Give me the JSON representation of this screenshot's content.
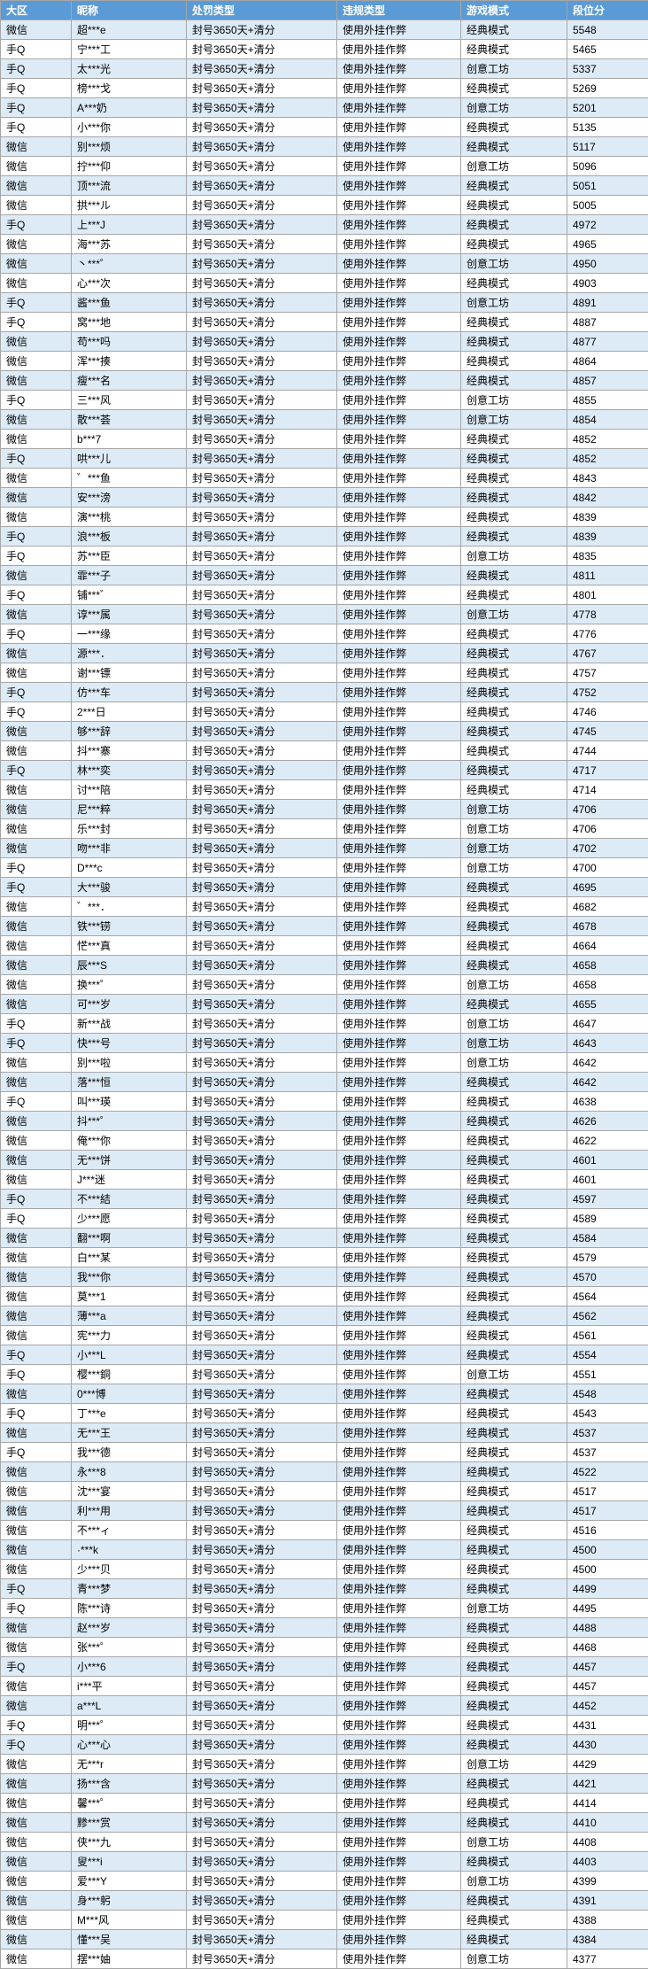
{
  "header": {
    "col0": "大区",
    "col1": "昵称",
    "col2": "处罚类型",
    "col3": "违规类型",
    "col4": "游戏模式",
    "col5": "段位分"
  },
  "colors": {
    "header_bg": "#5b9bd5",
    "header_fg": "#ffffff",
    "band_a": "#ddebf7",
    "band_b": "#ffffff",
    "border": "#a6a6a6"
  },
  "rows": [
    {
      "region": "微信",
      "nick": "超***e",
      "penalty": "封号3650天+清分",
      "violation": "使用外挂作弊",
      "mode": "经典模式",
      "score": "5548"
    },
    {
      "region": "手Q",
      "nick": "宁***工",
      "penalty": "封号3650天+清分",
      "violation": "使用外挂作弊",
      "mode": "经典模式",
      "score": "5465"
    },
    {
      "region": "手Q",
      "nick": "太***光",
      "penalty": "封号3650天+清分",
      "violation": "使用外挂作弊",
      "mode": "创意工坊",
      "score": "5337"
    },
    {
      "region": "手Q",
      "nick": "榜***戈",
      "penalty": "封号3650天+清分",
      "violation": "使用外挂作弊",
      "mode": "经典模式",
      "score": "5269"
    },
    {
      "region": "手Q",
      "nick": "A***奶",
      "penalty": "封号3650天+清分",
      "violation": "使用外挂作弊",
      "mode": "创意工坊",
      "score": "5201"
    },
    {
      "region": "手Q",
      "nick": "小***你",
      "penalty": "封号3650天+清分",
      "violation": "使用外挂作弊",
      "mode": "经典模式",
      "score": "5135"
    },
    {
      "region": "微信",
      "nick": "别***烦",
      "penalty": "封号3650天+清分",
      "violation": "使用外挂作弊",
      "mode": "经典模式",
      "score": "5117"
    },
    {
      "region": "微信",
      "nick": "拧***仰",
      "penalty": "封号3650天+清分",
      "violation": "使用外挂作弊",
      "mode": "创意工坊",
      "score": "5096"
    },
    {
      "region": "微信",
      "nick": "顶***流",
      "penalty": "封号3650天+清分",
      "violation": "使用外挂作弊",
      "mode": "经典模式",
      "score": "5051"
    },
    {
      "region": "微信",
      "nick": "拱***ル",
      "penalty": "封号3650天+清分",
      "violation": "使用外挂作弊",
      "mode": "经典模式",
      "score": "5005"
    },
    {
      "region": "手Q",
      "nick": "上***J",
      "penalty": "封号3650天+清分",
      "violation": "使用外挂作弊",
      "mode": "经典模式",
      "score": "4972"
    },
    {
      "region": "微信",
      "nick": "海***苏",
      "penalty": "封号3650天+清分",
      "violation": "使用外挂作弊",
      "mode": "经典模式",
      "score": "4965"
    },
    {
      "region": "微信",
      "nick": "丶***゜",
      "penalty": "封号3650天+清分",
      "violation": "使用外挂作弊",
      "mode": "创意工坊",
      "score": "4950"
    },
    {
      "region": "微信",
      "nick": "心***次",
      "penalty": "封号3650天+清分",
      "violation": "使用外挂作弊",
      "mode": "经典模式",
      "score": "4903"
    },
    {
      "region": "手Q",
      "nick": "酱***鱼",
      "penalty": "封号3650天+清分",
      "violation": "使用外挂作弊",
      "mode": "创意工坊",
      "score": "4891"
    },
    {
      "region": "手Q",
      "nick": "窝***地",
      "penalty": "封号3650天+清分",
      "violation": "使用外挂作弊",
      "mode": "经典模式",
      "score": "4887"
    },
    {
      "region": "微信",
      "nick": "苟***吗",
      "penalty": "封号3650天+清分",
      "violation": "使用外挂作弊",
      "mode": "经典模式",
      "score": "4877"
    },
    {
      "region": "微信",
      "nick": "浑***揍",
      "penalty": "封号3650天+清分",
      "violation": "使用外挂作弊",
      "mode": "经典模式",
      "score": "4864"
    },
    {
      "region": "微信",
      "nick": "瘦***名",
      "penalty": "封号3650天+清分",
      "violation": "使用外挂作弊",
      "mode": "经典模式",
      "score": "4857"
    },
    {
      "region": "手Q",
      "nick": "三***风",
      "penalty": "封号3650天+清分",
      "violation": "使用外挂作弊",
      "mode": "创意工坊",
      "score": "4855"
    },
    {
      "region": "微信",
      "nick": "散***荟",
      "penalty": "封号3650天+清分",
      "violation": "使用外挂作弊",
      "mode": "创意工坊",
      "score": "4854"
    },
    {
      "region": "微信",
      "nick": "b***7",
      "penalty": "封号3650天+清分",
      "violation": "使用外挂作弊",
      "mode": "经典模式",
      "score": "4852"
    },
    {
      "region": "手Q",
      "nick": "哄***儿",
      "penalty": "封号3650天+清分",
      "violation": "使用外挂作弊",
      "mode": "经典模式",
      "score": "4852"
    },
    {
      "region": "微信",
      "nick": "゛***鱼",
      "penalty": "封号3650天+清分",
      "violation": "使用外挂作弊",
      "mode": "经典模式",
      "score": "4843"
    },
    {
      "region": "微信",
      "nick": "安***滂",
      "penalty": "封号3650天+清分",
      "violation": "使用外挂作弊",
      "mode": "经典模式",
      "score": "4842"
    },
    {
      "region": "微信",
      "nick": "演***桃",
      "penalty": "封号3650天+清分",
      "violation": "使用外挂作弊",
      "mode": "经典模式",
      "score": "4839"
    },
    {
      "region": "手Q",
      "nick": "浪***板",
      "penalty": "封号3650天+清分",
      "violation": "使用外挂作弊",
      "mode": "经典模式",
      "score": "4839"
    },
    {
      "region": "手Q",
      "nick": "苏***臣",
      "penalty": "封号3650天+清分",
      "violation": "使用外挂作弊",
      "mode": "创意工坊",
      "score": "4835"
    },
    {
      "region": "微信",
      "nick": "霏***子",
      "penalty": "封号3650天+清分",
      "violation": "使用外挂作弊",
      "mode": "经典模式",
      "score": "4811"
    },
    {
      "region": "手Q",
      "nick": "铺***゛",
      "penalty": "封号3650天+清分",
      "violation": "使用外挂作弊",
      "mode": "经典模式",
      "score": "4801"
    },
    {
      "region": "微信",
      "nick": "谆***属",
      "penalty": "封号3650天+清分",
      "violation": "使用外挂作弊",
      "mode": "创意工坊",
      "score": "4778"
    },
    {
      "region": "手Q",
      "nick": "一***缘",
      "penalty": "封号3650天+清分",
      "violation": "使用外挂作弊",
      "mode": "经典模式",
      "score": "4776"
    },
    {
      "region": "微信",
      "nick": "源***．",
      "penalty": "封号3650天+清分",
      "violation": "使用外挂作弊",
      "mode": "经典模式",
      "score": "4767"
    },
    {
      "region": "微信",
      "nick": "谢***镖",
      "penalty": "封号3650天+清分",
      "violation": "使用外挂作弊",
      "mode": "经典模式",
      "score": "4757"
    },
    {
      "region": "手Q",
      "nick": "仿***车",
      "penalty": "封号3650天+清分",
      "violation": "使用外挂作弊",
      "mode": "经典模式",
      "score": "4752"
    },
    {
      "region": "手Q",
      "nick": "2***日",
      "penalty": "封号3650天+清分",
      "violation": "使用外挂作弊",
      "mode": "经典模式",
      "score": "4746"
    },
    {
      "region": "微信",
      "nick": "够***辞",
      "penalty": "封号3650天+清分",
      "violation": "使用外挂作弊",
      "mode": "经典模式",
      "score": "4745"
    },
    {
      "region": "微信",
      "nick": "抖***寨",
      "penalty": "封号3650天+清分",
      "violation": "使用外挂作弊",
      "mode": "经典模式",
      "score": "4744"
    },
    {
      "region": "手Q",
      "nick": "林***奕",
      "penalty": "封号3650天+清分",
      "violation": "使用外挂作弊",
      "mode": "经典模式",
      "score": "4717"
    },
    {
      "region": "微信",
      "nick": "讨***陪",
      "penalty": "封号3650天+清分",
      "violation": "使用外挂作弊",
      "mode": "经典模式",
      "score": "4714"
    },
    {
      "region": "微信",
      "nick": "尼***粹",
      "penalty": "封号3650天+清分",
      "violation": "使用外挂作弊",
      "mode": "创意工坊",
      "score": "4706"
    },
    {
      "region": "微信",
      "nick": "乐***封",
      "penalty": "封号3650天+清分",
      "violation": "使用外挂作弊",
      "mode": "创意工坊",
      "score": "4706"
    },
    {
      "region": "微信",
      "nick": "吻***非",
      "penalty": "封号3650天+清分",
      "violation": "使用外挂作弊",
      "mode": "创意工坊",
      "score": "4702"
    },
    {
      "region": "手Q",
      "nick": "D***c",
      "penalty": "封号3650天+清分",
      "violation": "使用外挂作弊",
      "mode": "创意工坊",
      "score": "4700"
    },
    {
      "region": "手Q",
      "nick": "大***骏",
      "penalty": "封号3650天+清分",
      "violation": "使用外挂作弊",
      "mode": "经典模式",
      "score": "4695"
    },
    {
      "region": "微信",
      "nick": "゛***．",
      "penalty": "封号3650天+清分",
      "violation": "使用外挂作弊",
      "mode": "经典模式",
      "score": "4682"
    },
    {
      "region": "微信",
      "nick": "铁***铹",
      "penalty": "封号3650天+清分",
      "violation": "使用外挂作弊",
      "mode": "经典模式",
      "score": "4678"
    },
    {
      "region": "微信",
      "nick": "恾***真",
      "penalty": "封号3650天+清分",
      "violation": "使用外挂作弊",
      "mode": "经典模式",
      "score": "4664"
    },
    {
      "region": "微信",
      "nick": "辰***S",
      "penalty": "封号3650天+清分",
      "violation": "使用外挂作弊",
      "mode": "经典模式",
      "score": "4658"
    },
    {
      "region": "微信",
      "nick": "换***゜",
      "penalty": "封号3650天+清分",
      "violation": "使用外挂作弊",
      "mode": "创意工坊",
      "score": "4658"
    },
    {
      "region": "微信",
      "nick": "可***岁",
      "penalty": "封号3650天+清分",
      "violation": "使用外挂作弊",
      "mode": "经典模式",
      "score": "4655"
    },
    {
      "region": "手Q",
      "nick": "新***战",
      "penalty": "封号3650天+清分",
      "violation": "使用外挂作弊",
      "mode": "创意工坊",
      "score": "4647"
    },
    {
      "region": "手Q",
      "nick": "快***号",
      "penalty": "封号3650天+清分",
      "violation": "使用外挂作弊",
      "mode": "创意工坊",
      "score": "4643"
    },
    {
      "region": "微信",
      "nick": "别***啦",
      "penalty": "封号3650天+清分",
      "violation": "使用外挂作弊",
      "mode": "创意工坊",
      "score": "4642"
    },
    {
      "region": "微信",
      "nick": "落***恒",
      "penalty": "封号3650天+清分",
      "violation": "使用外挂作弊",
      "mode": "经典模式",
      "score": "4642"
    },
    {
      "region": "手Q",
      "nick": "叫***瑛",
      "penalty": "封号3650天+清分",
      "violation": "使用外挂作弊",
      "mode": "经典模式",
      "score": "4638"
    },
    {
      "region": "微信",
      "nick": "抖***゜",
      "penalty": "封号3650天+清分",
      "violation": "使用外挂作弊",
      "mode": "经典模式",
      "score": "4626"
    },
    {
      "region": "微信",
      "nick": "俺***你",
      "penalty": "封号3650天+清分",
      "violation": "使用外挂作弊",
      "mode": "经典模式",
      "score": "4622"
    },
    {
      "region": "微信",
      "nick": "无***饼",
      "penalty": "封号3650天+清分",
      "violation": "使用外挂作弊",
      "mode": "经典模式",
      "score": "4601"
    },
    {
      "region": "微信",
      "nick": "J***迷",
      "penalty": "封号3650天+清分",
      "violation": "使用外挂作弊",
      "mode": "经典模式",
      "score": "4601"
    },
    {
      "region": "手Q",
      "nick": "不***結",
      "penalty": "封号3650天+清分",
      "violation": "使用外挂作弊",
      "mode": "经典模式",
      "score": "4597"
    },
    {
      "region": "手Q",
      "nick": "少***愿",
      "penalty": "封号3650天+清分",
      "violation": "使用外挂作弊",
      "mode": "经典模式",
      "score": "4589"
    },
    {
      "region": "微信",
      "nick": "翻***啊",
      "penalty": "封号3650天+清分",
      "violation": "使用外挂作弊",
      "mode": "经典模式",
      "score": "4584"
    },
    {
      "region": "微信",
      "nick": "白***某",
      "penalty": "封号3650天+清分",
      "violation": "使用外挂作弊",
      "mode": "经典模式",
      "score": "4579"
    },
    {
      "region": "微信",
      "nick": "我***你",
      "penalty": "封号3650天+清分",
      "violation": "使用外挂作弊",
      "mode": "经典模式",
      "score": "4570"
    },
    {
      "region": "微信",
      "nick": "莫***1",
      "penalty": "封号3650天+清分",
      "violation": "使用外挂作弊",
      "mode": "经典模式",
      "score": "4564"
    },
    {
      "region": "微信",
      "nick": "薄***a",
      "penalty": "封号3650天+清分",
      "violation": "使用外挂作弊",
      "mode": "经典模式",
      "score": "4562"
    },
    {
      "region": "微信",
      "nick": "宪***力",
      "penalty": "封号3650天+清分",
      "violation": "使用外挂作弊",
      "mode": "经典模式",
      "score": "4561"
    },
    {
      "region": "手Q",
      "nick": "小***L",
      "penalty": "封号3650天+清分",
      "violation": "使用外挂作弊",
      "mode": "经典模式",
      "score": "4554"
    },
    {
      "region": "手Q",
      "nick": "樱***銅",
      "penalty": "封号3650天+清分",
      "violation": "使用外挂作弊",
      "mode": "创意工坊",
      "score": "4551"
    },
    {
      "region": "微信",
      "nick": "0***博",
      "penalty": "封号3650天+清分",
      "violation": "使用外挂作弊",
      "mode": "经典模式",
      "score": "4548"
    },
    {
      "region": "手Q",
      "nick": "丁***e",
      "penalty": "封号3650天+清分",
      "violation": "使用外挂作弊",
      "mode": "经典模式",
      "score": "4543"
    },
    {
      "region": "微信",
      "nick": "无***王",
      "penalty": "封号3650天+清分",
      "violation": "使用外挂作弊",
      "mode": "经典模式",
      "score": "4537"
    },
    {
      "region": "手Q",
      "nick": "我***德",
      "penalty": "封号3650天+清分",
      "violation": "使用外挂作弊",
      "mode": "经典模式",
      "score": "4537"
    },
    {
      "region": "微信",
      "nick": "永***8",
      "penalty": "封号3650天+清分",
      "violation": "使用外挂作弊",
      "mode": "经典模式",
      "score": "4522"
    },
    {
      "region": "微信",
      "nick": "沈***宴",
      "penalty": "封号3650天+清分",
      "violation": "使用外挂作弊",
      "mode": "经典模式",
      "score": "4517"
    },
    {
      "region": "微信",
      "nick": "利***用",
      "penalty": "封号3650天+清分",
      "violation": "使用外挂作弊",
      "mode": "经典模式",
      "score": "4517"
    },
    {
      "region": "微信",
      "nick": "不***ィ",
      "penalty": "封号3650天+清分",
      "violation": "使用外挂作弊",
      "mode": "经典模式",
      "score": "4516"
    },
    {
      "region": "微信",
      "nick": "·***k",
      "penalty": "封号3650天+清分",
      "violation": "使用外挂作弊",
      "mode": "经典模式",
      "score": "4500"
    },
    {
      "region": "微信",
      "nick": "少***贝",
      "penalty": "封号3650天+清分",
      "violation": "使用外挂作弊",
      "mode": "经典模式",
      "score": "4500"
    },
    {
      "region": "手Q",
      "nick": "青***梦",
      "penalty": "封号3650天+清分",
      "violation": "使用外挂作弊",
      "mode": "经典模式",
      "score": "4499"
    },
    {
      "region": "手Q",
      "nick": "陈***诗",
      "penalty": "封号3650天+清分",
      "violation": "使用外挂作弊",
      "mode": "创意工坊",
      "score": "4495"
    },
    {
      "region": "微信",
      "nick": "赵***岁",
      "penalty": "封号3650天+清分",
      "violation": "使用外挂作弊",
      "mode": "经典模式",
      "score": "4488"
    },
    {
      "region": "微信",
      "nick": "张***゜",
      "penalty": "封号3650天+清分",
      "violation": "使用外挂作弊",
      "mode": "经典模式",
      "score": "4468"
    },
    {
      "region": "手Q",
      "nick": "小***6",
      "penalty": "封号3650天+清分",
      "violation": "使用外挂作弊",
      "mode": "经典模式",
      "score": "4457"
    },
    {
      "region": "微信",
      "nick": "i***平",
      "penalty": "封号3650天+清分",
      "violation": "使用外挂作弊",
      "mode": "经典模式",
      "score": "4457"
    },
    {
      "region": "微信",
      "nick": "a***L",
      "penalty": "封号3650天+清分",
      "violation": "使用外挂作弊",
      "mode": "经典模式",
      "score": "4452"
    },
    {
      "region": "手Q",
      "nick": "明***゜",
      "penalty": "封号3650天+清分",
      "violation": "使用外挂作弊",
      "mode": "经典模式",
      "score": "4431"
    },
    {
      "region": "手Q",
      "nick": "心***心",
      "penalty": "封号3650天+清分",
      "violation": "使用外挂作弊",
      "mode": "经典模式",
      "score": "4430"
    },
    {
      "region": "微信",
      "nick": "无***r",
      "penalty": "封号3650天+清分",
      "violation": "使用外挂作弊",
      "mode": "创意工坊",
      "score": "4429"
    },
    {
      "region": "微信",
      "nick": "扬***含",
      "penalty": "封号3650天+清分",
      "violation": "使用外挂作弊",
      "mode": "经典模式",
      "score": "4421"
    },
    {
      "region": "微信",
      "nick": "馨***゜",
      "penalty": "封号3650天+清分",
      "violation": "使用外挂作弊",
      "mode": "经典模式",
      "score": "4414"
    },
    {
      "region": "微信",
      "nick": "黪***赏",
      "penalty": "封号3650天+清分",
      "violation": "使用外挂作弊",
      "mode": "经典模式",
      "score": "4410"
    },
    {
      "region": "微信",
      "nick": "侠***九",
      "penalty": "封号3650天+清分",
      "violation": "使用外挂作弊",
      "mode": "创意工坊",
      "score": "4408"
    },
    {
      "region": "微信",
      "nick": "叟***i",
      "penalty": "封号3650天+清分",
      "violation": "使用外挂作弊",
      "mode": "经典模式",
      "score": "4403"
    },
    {
      "region": "微信",
      "nick": "爱***Y",
      "penalty": "封号3650天+清分",
      "violation": "使用外挂作弊",
      "mode": "创意工坊",
      "score": "4399"
    },
    {
      "region": "微信",
      "nick": "身***躬",
      "penalty": "封号3650天+清分",
      "violation": "使用外挂作弊",
      "mode": "经典模式",
      "score": "4391"
    },
    {
      "region": "微信",
      "nick": "M***风",
      "penalty": "封号3650天+清分",
      "violation": "使用外挂作弊",
      "mode": "经典模式",
      "score": "4388"
    },
    {
      "region": "微信",
      "nick": "懂***吴",
      "penalty": "封号3650天+清分",
      "violation": "使用外挂作弊",
      "mode": "经典模式",
      "score": "4384"
    },
    {
      "region": "微信",
      "nick": "摆***妯",
      "penalty": "封号3650天+清分",
      "violation": "使用外挂作弊",
      "mode": "创意工坊",
      "score": "4377"
    }
  ]
}
